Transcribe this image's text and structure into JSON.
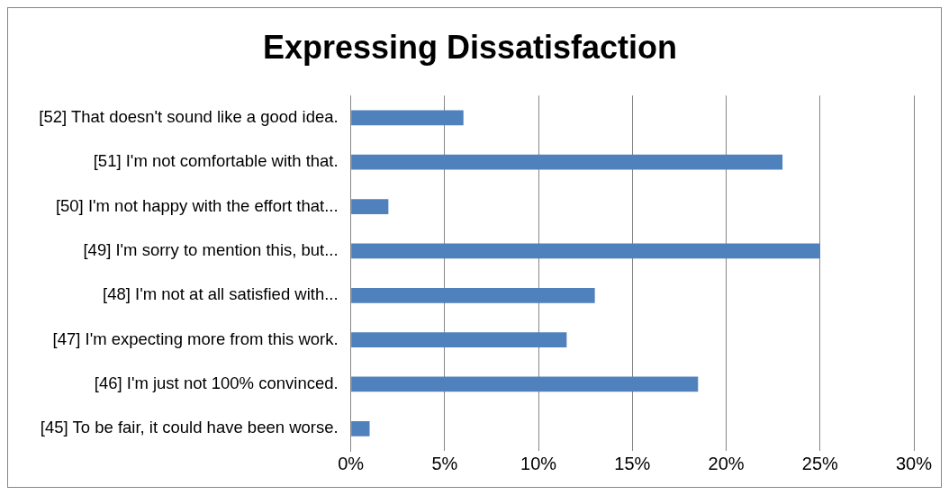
{
  "chart_data": {
    "type": "bar",
    "orientation": "horizontal",
    "title": "Expressing Dissatisfaction",
    "categories": [
      "[52] That doesn't sound like a good idea.",
      "[51] I'm not comfortable with that.",
      "[50] I'm not happy with the effort that...",
      "[49] I'm sorry to mention this, but...",
      "[48] I'm not at all satisfied with...",
      "[47] I'm expecting more from this work.",
      "[46] I'm just not 100% convinced.",
      "[45] To be fair, it could have been worse."
    ],
    "values": [
      6,
      23,
      2,
      25,
      13,
      11.5,
      18.5,
      1
    ],
    "color": "#4f81bd",
    "xlim": [
      0,
      30
    ],
    "xticks": [
      {
        "value": 0,
        "label": "0%"
      },
      {
        "value": 5,
        "label": "5%"
      },
      {
        "value": 10,
        "label": "10%"
      },
      {
        "value": 15,
        "label": "15%"
      },
      {
        "value": 20,
        "label": "20%"
      },
      {
        "value": 25,
        "label": "25%"
      },
      {
        "value": 30,
        "label": "30%"
      }
    ],
    "grid": "x",
    "legend": false
  }
}
